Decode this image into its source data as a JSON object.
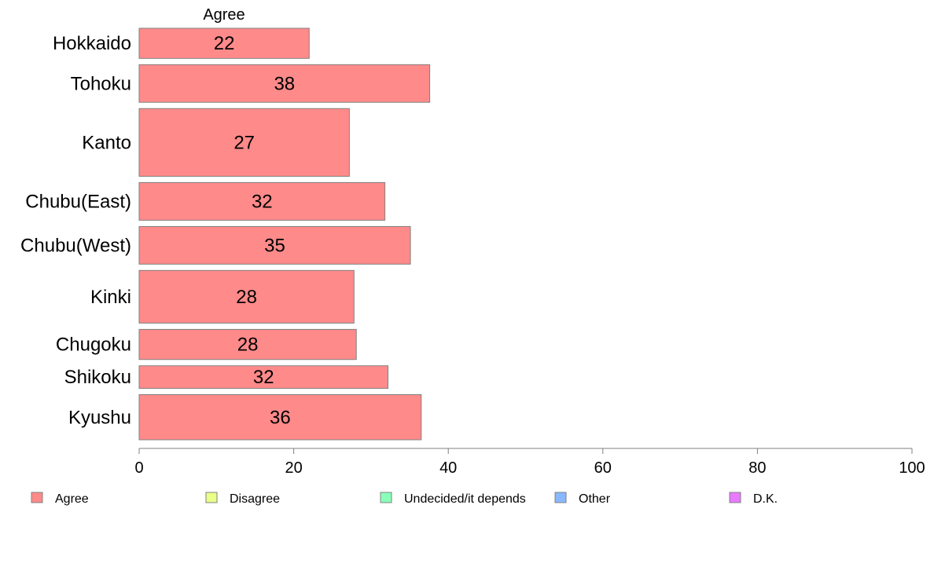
{
  "chart_data": {
    "type": "bar",
    "orientation": "horizontal",
    "series_title": "Agree",
    "categories": [
      "Hokkaido",
      "Tohoku",
      "Kanto",
      "Chubu(East)",
      "Chubu(West)",
      "Kinki",
      "Chugoku",
      "Shikoku",
      "Kyushu"
    ],
    "category_weights": [
      4,
      5,
      9,
      5,
      5,
      7,
      4,
      3,
      6
    ],
    "series": [
      {
        "name": "Agree",
        "values": [
          22,
          37.6,
          27.2,
          31.8,
          35.1,
          27.8,
          28.1,
          32.2,
          36.5
        ],
        "value_labels": [
          "22",
          "38",
          "27",
          "32",
          "35",
          "28",
          "28",
          "32",
          "36"
        ]
      }
    ],
    "xlim": [
      0,
      100
    ],
    "x_ticks": [
      "0",
      "20",
      "40",
      "60",
      "80",
      "100"
    ],
    "grid": false,
    "legend": {
      "placement": "bottom",
      "entries": [
        {
          "label": "Agree",
          "color": "#ff8a8a"
        },
        {
          "label": "Disagree",
          "color": "#e9ff8a"
        },
        {
          "label": "Undecided/it depends",
          "color": "#8affb8"
        },
        {
          "label": "Other",
          "color": "#8ab8ff"
        },
        {
          "label": "D.K.",
          "color": "#e97aff"
        }
      ]
    },
    "colors": {
      "bar_fill": "#ff8a8a",
      "bar_stroke": "#808080",
      "axis": "#808080"
    }
  }
}
